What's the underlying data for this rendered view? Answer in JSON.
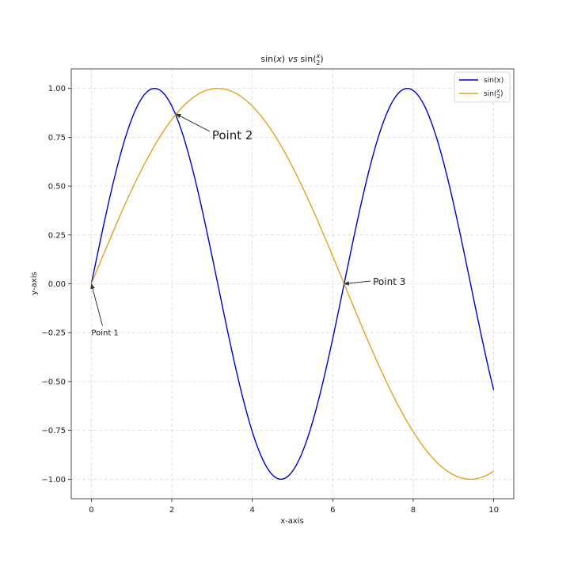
{
  "chart_data": {
    "type": "line",
    "title": "sin(x) vs sin(x/2)",
    "title_parts": {
      "lhs": "sin(",
      "x1": "x",
      "mid": ") ",
      "vs": "vs",
      "rhs": " sin(",
      "num": "x",
      "den": "2",
      "end": ")"
    },
    "xlabel": "x-axis",
    "ylabel": "y-axis",
    "xlim": [
      -0.5,
      10.5
    ],
    "ylim": [
      -1.1,
      1.1
    ],
    "xticks": [
      0,
      2,
      4,
      6,
      8,
      10
    ],
    "xtick_labels": [
      "0",
      "2",
      "4",
      "6",
      "8",
      "10"
    ],
    "yticks": [
      -1.0,
      -0.75,
      -0.5,
      -0.25,
      0.0,
      0.25,
      0.5,
      0.75,
      1.0
    ],
    "ytick_labels": [
      "−1.00",
      "−0.75",
      "−0.50",
      "−0.25",
      "0.00",
      "0.25",
      "0.50",
      "0.75",
      "1.00"
    ],
    "grid": true,
    "legend_position": "top-right",
    "series": [
      {
        "name": "sin(x)",
        "color": "#0000cc",
        "function": "sin(x)",
        "x_range": [
          0,
          10
        ],
        "samples": [
          [
            0,
            0
          ],
          [
            0.5,
            0.479
          ],
          [
            1.0,
            0.841
          ],
          [
            1.5708,
            1.0
          ],
          [
            2.0,
            0.909
          ],
          [
            2.5,
            0.598
          ],
          [
            3.0,
            0.141
          ],
          [
            3.5,
            -0.351
          ],
          [
            4.0,
            -0.757
          ],
          [
            4.7124,
            -1.0
          ],
          [
            5.0,
            -0.959
          ],
          [
            5.5,
            -0.706
          ],
          [
            6.0,
            -0.279
          ],
          [
            6.5,
            0.215
          ],
          [
            7.0,
            0.657
          ],
          [
            7.854,
            1.0
          ],
          [
            8.5,
            0.798
          ],
          [
            9.0,
            0.412
          ],
          [
            9.5,
            -0.075
          ],
          [
            10.0,
            -0.544
          ]
        ]
      },
      {
        "name": "sin(x/2)",
        "legend_parts": {
          "pre": "sin(",
          "num": "x",
          "den": "2",
          "post": ")"
        },
        "color": "#e6a020",
        "function": "sin(x/2)",
        "x_range": [
          0,
          10
        ],
        "samples": [
          [
            0,
            0
          ],
          [
            1.0,
            0.479
          ],
          [
            2.0,
            0.841
          ],
          [
            3.1416,
            1.0
          ],
          [
            4.0,
            0.909
          ],
          [
            5.0,
            0.598
          ],
          [
            6.0,
            0.141
          ],
          [
            7.0,
            -0.351
          ],
          [
            8.0,
            -0.757
          ],
          [
            9.4248,
            -1.0
          ],
          [
            10.0,
            -0.959
          ]
        ]
      }
    ],
    "annotations": [
      {
        "label": "Point 1",
        "point": [
          0,
          0
        ],
        "text_at": [
          0.0,
          -0.25
        ],
        "font_size": 10
      },
      {
        "label": "Point 2",
        "point": [
          2.1,
          0.87
        ],
        "text_at": [
          3.0,
          0.76
        ],
        "font_size": 15
      },
      {
        "label": "Point 3",
        "point": [
          6.28,
          0.0
        ],
        "text_at": [
          7.0,
          0.01
        ],
        "font_size": 12
      }
    ]
  }
}
